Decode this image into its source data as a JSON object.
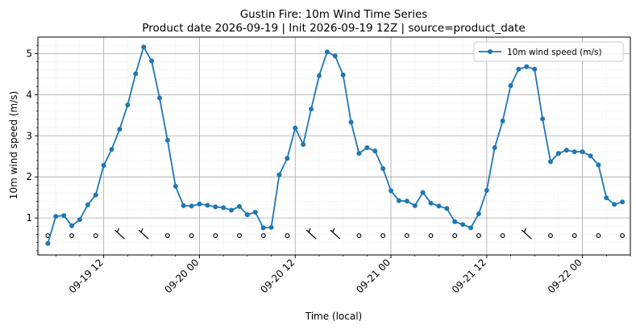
{
  "chart_data": {
    "type": "line",
    "title": "Gustin Fire: 10m Wind Time Series",
    "subtitle": "Product date 2026-09-19 | Init 2026-09-19 12Z | source=product_date",
    "xlabel": "Time (local)",
    "ylabel": "10m wind speed (m/s)",
    "x_start": "2026-09-19 05:00",
    "x_step_hours": 1,
    "xlim": [
      "2026-09-19 03:45",
      "2026-09-22 06:00"
    ],
    "ylim": [
      0.1,
      5.4
    ],
    "yticks": [
      1,
      2,
      3,
      4,
      5
    ],
    "xticks": [
      {
        "time": "2026-09-19 12:00",
        "label": "09-19 12"
      },
      {
        "time": "2026-09-20 00:00",
        "label": "09-20 00"
      },
      {
        "time": "2026-09-20 12:00",
        "label": "09-20 12"
      },
      {
        "time": "2026-09-21 00:00",
        "label": "09-21 00"
      },
      {
        "time": "2026-09-21 12:00",
        "label": "09-21 12"
      },
      {
        "time": "2026-09-22 00:00",
        "label": "09-22 00"
      }
    ],
    "grid": true,
    "legend_position": "top-right",
    "color": "#1f77b4",
    "series": [
      {
        "name": "10m wind speed (m/s)",
        "values": [
          0.38,
          1.04,
          1.06,
          0.81,
          0.96,
          1.32,
          1.56,
          2.28,
          2.67,
          3.16,
          3.75,
          4.51,
          5.16,
          4.82,
          3.92,
          2.89,
          1.77,
          1.3,
          1.29,
          1.34,
          1.31,
          1.27,
          1.25,
          1.19,
          1.28,
          1.08,
          1.14,
          0.76,
          0.77,
          2.05,
          2.45,
          3.19,
          2.79,
          3.65,
          4.46,
          5.04,
          4.94,
          4.48,
          3.33,
          2.57,
          2.71,
          2.63,
          2.2,
          1.66,
          1.42,
          1.41,
          1.3,
          1.62,
          1.36,
          1.29,
          1.23,
          0.91,
          0.84,
          0.76,
          1.1,
          1.67,
          2.71,
          3.36,
          4.22,
          4.62,
          4.68,
          4.62,
          3.41,
          2.37,
          2.57,
          2.65,
          2.61,
          2.61,
          2.51,
          2.29,
          1.49,
          1.33,
          1.39
        ]
      }
    ],
    "wind_barbs": {
      "y": 0.57,
      "times": [
        "2026-09-19 05:00",
        "2026-09-19 08:00",
        "2026-09-19 11:00",
        "2026-09-19 14:00",
        "2026-09-19 17:00",
        "2026-09-19 20:00",
        "2026-09-19 23:00",
        "2026-09-20 02:00",
        "2026-09-20 05:00",
        "2026-09-20 08:00",
        "2026-09-20 11:00",
        "2026-09-20 14:00",
        "2026-09-20 17:00",
        "2026-09-20 20:00",
        "2026-09-20 23:00",
        "2026-09-21 02:00",
        "2026-09-21 05:00",
        "2026-09-21 08:00",
        "2026-09-21 11:00",
        "2026-09-21 14:00",
        "2026-09-21 17:00",
        "2026-09-21 20:00",
        "2026-09-21 23:00",
        "2026-09-22 02:00",
        "2026-09-22 05:00"
      ],
      "kinds": [
        "calm",
        "calm",
        "calm",
        "barb",
        "barb",
        "calm",
        "calm",
        "calm",
        "calm",
        "calm",
        "calm",
        "barb",
        "barb",
        "calm",
        "calm",
        "calm",
        "calm",
        "calm",
        "calm",
        "calm",
        "barb",
        "calm",
        "calm",
        "calm",
        "calm"
      ]
    }
  }
}
